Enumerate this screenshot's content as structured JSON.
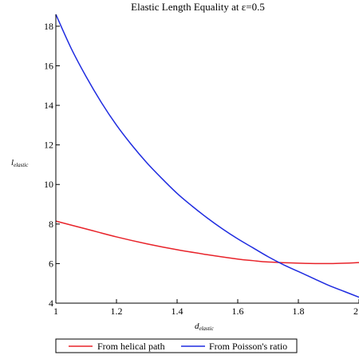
{
  "chart_data": {
    "type": "line",
    "title": "Elastic Length Equality at ε=0.5",
    "xlabel_main": "d",
    "xlabel_sub": "elastic",
    "ylabel_main": "l",
    "ylabel_sub": "elastic",
    "xlim": [
      1,
      2
    ],
    "ylim": [
      4,
      18.6
    ],
    "x_ticks": [
      1,
      1.2,
      1.4,
      1.6,
      1.8,
      2
    ],
    "x_tick_labels": [
      "1",
      "1.2",
      "1.4",
      "1.6",
      "1.8",
      "2"
    ],
    "y_ticks": [
      4,
      6,
      8,
      10,
      12,
      14,
      16,
      18
    ],
    "y_tick_labels": [
      "4",
      "6",
      "8",
      "10",
      "12",
      "14",
      "16",
      "18"
    ],
    "grid": false,
    "legend_position": "bottom",
    "series": [
      {
        "name": "From helical path",
        "color": "#e8232a",
        "x": [
          1.0,
          1.1,
          1.2,
          1.3,
          1.4,
          1.5,
          1.6,
          1.65,
          1.7,
          1.8,
          1.9,
          2.0
        ],
        "y": [
          8.15,
          7.75,
          7.35,
          7.0,
          6.7,
          6.45,
          6.23,
          6.15,
          6.08,
          6.02,
          6.0,
          6.05
        ]
      },
      {
        "name": "From Poisson's ratio",
        "color": "#1f2ce0",
        "x": [
          1.0,
          1.05,
          1.1,
          1.15,
          1.2,
          1.25,
          1.3,
          1.35,
          1.4,
          1.45,
          1.5,
          1.55,
          1.6,
          1.65,
          1.7,
          1.75,
          1.8,
          1.85,
          1.9,
          1.95,
          2.0
        ],
        "y": [
          18.6,
          16.9,
          15.45,
          14.15,
          13.0,
          12.0,
          11.1,
          10.3,
          9.55,
          8.9,
          8.3,
          7.75,
          7.25,
          6.8,
          6.35,
          5.95,
          5.6,
          5.25,
          4.9,
          4.6,
          4.3
        ]
      }
    ]
  }
}
